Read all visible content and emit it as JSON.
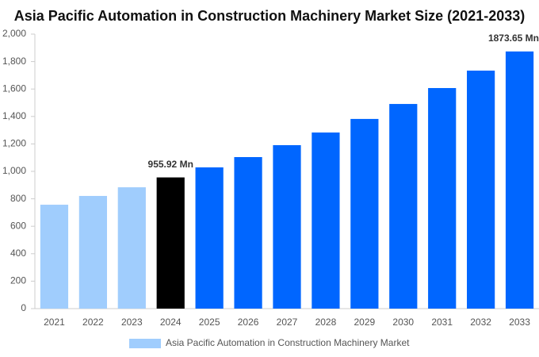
{
  "chart_data": {
    "type": "bar",
    "title": "Asia Pacific Automation in Construction Machinery Market Size (2021-2033)",
    "categories": [
      "2021",
      "2022",
      "2023",
      "2024",
      "2025",
      "2026",
      "2027",
      "2028",
      "2029",
      "2030",
      "2031",
      "2032",
      "2033"
    ],
    "series": [
      {
        "name": "Asia Pacific Automation in Construction Machinery Market",
        "color": "#a0cdfd",
        "values": [
          757,
          821,
          884,
          955.92,
          1029,
          1104,
          1191,
          1283,
          1382,
          1491,
          1607,
          1734,
          1873.65
        ],
        "colors": [
          "#a0cdfd",
          "#a0cdfd",
          "#a0cdfd",
          "#000000",
          "#0066ff",
          "#0066ff",
          "#0066ff",
          "#0066ff",
          "#0066ff",
          "#0066ff",
          "#0066ff",
          "#0066ff",
          "#0066ff"
        ],
        "value_labels": [
          null,
          null,
          null,
          "955.92 Mn",
          null,
          null,
          null,
          null,
          null,
          null,
          null,
          null,
          "1873.65 Mn"
        ]
      }
    ],
    "ylim": [
      0,
      2000
    ],
    "yticks": [
      0,
      200,
      400,
      600,
      800,
      {
        "value": 1000,
        "label": "1,000"
      },
      {
        "value": 1200,
        "label": "1,200"
      },
      {
        "value": 1400,
        "label": "1,400"
      },
      {
        "value": 1600,
        "label": "1,600"
      },
      {
        "value": 1800,
        "label": "1,800"
      },
      {
        "value": 2000,
        "label": "2,000"
      }
    ],
    "grid": false,
    "legend": "bottom"
  }
}
